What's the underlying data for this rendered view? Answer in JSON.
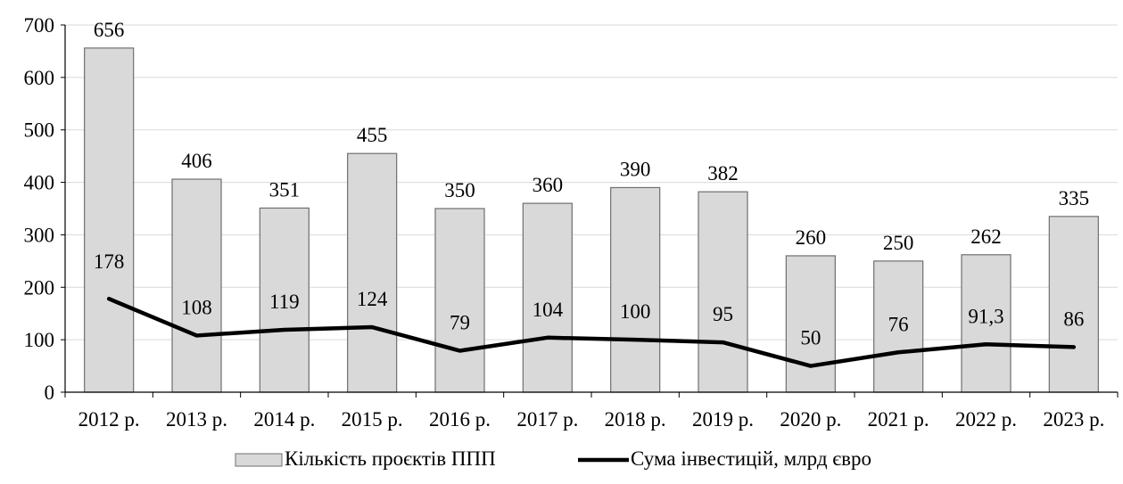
{
  "chart_data": {
    "type": "bar",
    "categories": [
      "2012 р.",
      "2013 р.",
      "2014 р.",
      "2015 р.",
      "2016 р.",
      "2017 р.",
      "2018 р.",
      "2019 р.",
      "2020 р.",
      "2021 р.",
      "2022 р.",
      "2023 р."
    ],
    "ylim": [
      0,
      700
    ],
    "y_ticks": [
      "0",
      "100",
      "200",
      "300",
      "400",
      "500",
      "600",
      "700"
    ],
    "grid": true,
    "legend_position": "bottom",
    "series": [
      {
        "name": "Кількість проєктів ППП",
        "type": "bar",
        "values": [
          656,
          406,
          351,
          455,
          350,
          360,
          390,
          382,
          260,
          250,
          262,
          335
        ],
        "labels": [
          "656",
          "406",
          "351",
          "455",
          "350",
          "360",
          "390",
          "382",
          "260",
          "250",
          "262",
          "335"
        ],
        "color": "#d9d9d9"
      },
      {
        "name": "Сума інвестицій, млрд євро",
        "type": "line",
        "values": [
          178,
          108,
          119,
          124,
          79,
          104,
          100,
          95,
          50,
          76,
          91.3,
          86
        ],
        "labels": [
          "178",
          "108",
          "119",
          "124",
          "79",
          "104",
          "100",
          "95",
          "50",
          "76",
          "91,3",
          "86"
        ],
        "color": "#000000"
      }
    ]
  }
}
